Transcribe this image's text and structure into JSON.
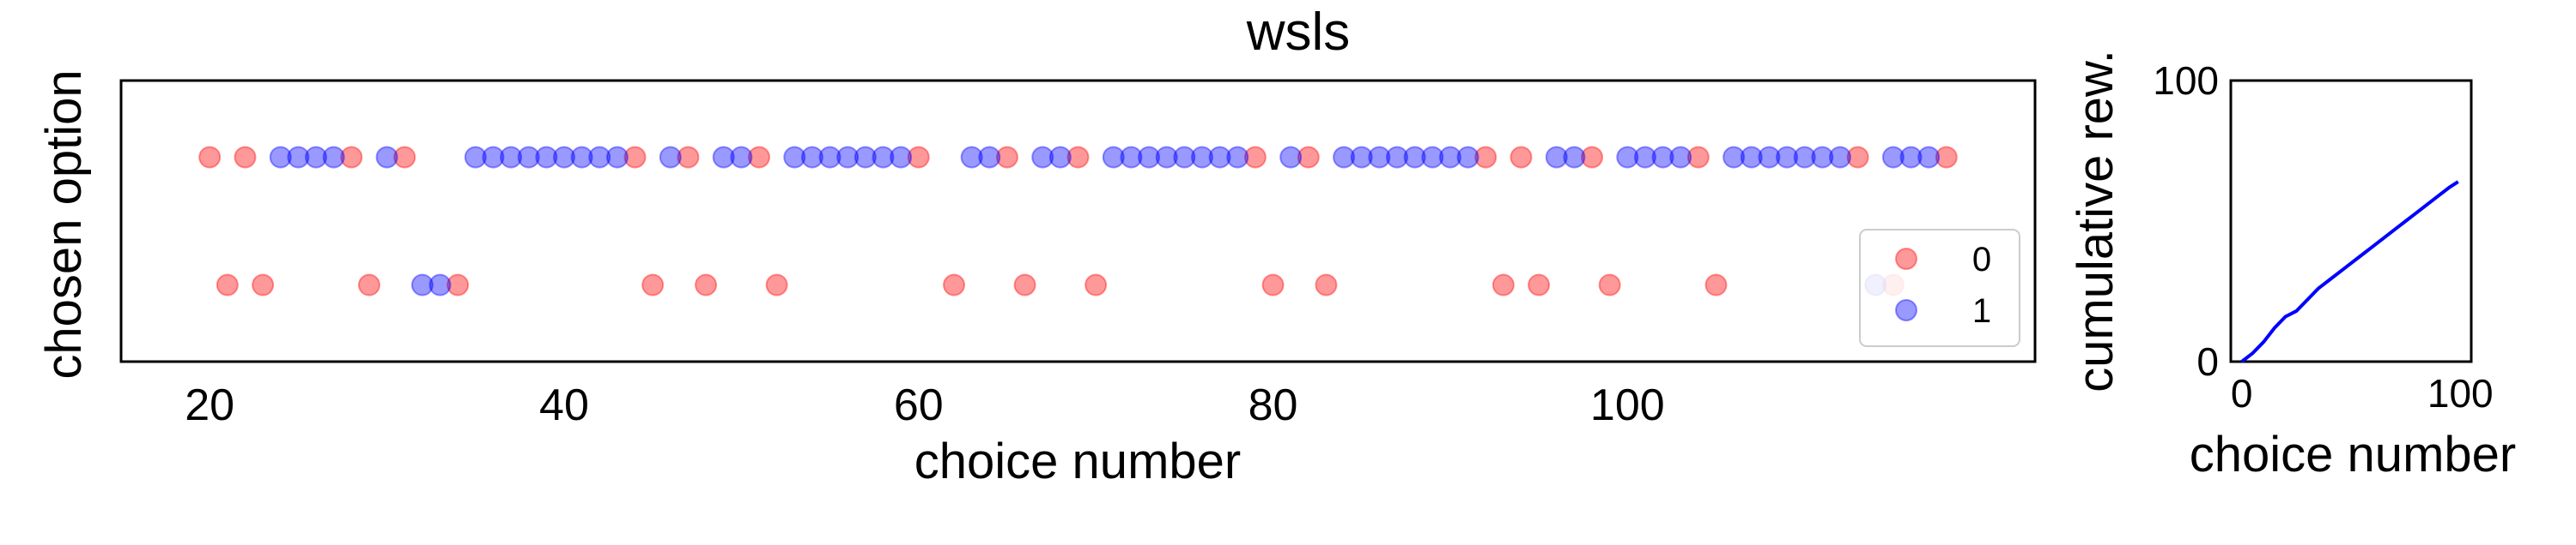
{
  "chart_data": [
    {
      "type": "scatter",
      "title": "wsls",
      "xlabel": "choice number",
      "ylabel": "chosen option",
      "xlim": [
        15,
        123
      ],
      "ylim": [
        -0.6,
        1.6
      ],
      "xticks": [
        20,
        40,
        60,
        80,
        100
      ],
      "yticks_visible": false,
      "legend": {
        "placement": "right",
        "entries": [
          "0",
          "1"
        ]
      },
      "colors": {
        "0": "#ff0000",
        "1": "#0000ff"
      },
      "marker_alpha": 0.4,
      "rewarded_y": 1,
      "unrewarded_y": 0,
      "series": [
        {
          "name": "0",
          "points": [
            [
              20,
              1
            ],
            [
              22,
              1
            ],
            [
              28,
              1
            ],
            [
              31,
              1
            ],
            [
              44,
              1
            ],
            [
              47,
              1
            ],
            [
              51,
              1
            ],
            [
              60,
              1
            ],
            [
              65,
              1
            ],
            [
              69,
              1
            ],
            [
              79,
              1
            ],
            [
              82,
              1
            ],
            [
              92,
              1
            ],
            [
              94,
              1
            ],
            [
              98,
              1
            ],
            [
              104,
              1
            ],
            [
              113,
              1
            ],
            [
              118,
              1
            ],
            [
              21,
              0
            ],
            [
              23,
              0
            ],
            [
              29,
              0
            ],
            [
              34,
              0
            ],
            [
              45,
              0
            ],
            [
              48,
              0
            ],
            [
              52,
              0
            ],
            [
              62,
              0
            ],
            [
              66,
              0
            ],
            [
              70,
              0
            ],
            [
              80,
              0
            ],
            [
              83,
              0
            ],
            [
              93,
              0
            ],
            [
              95,
              0
            ],
            [
              99,
              0
            ],
            [
              105,
              0
            ],
            [
              115,
              0
            ]
          ]
        },
        {
          "name": "1",
          "points": [
            [
              24,
              1
            ],
            [
              25,
              1
            ],
            [
              26,
              1
            ],
            [
              27,
              1
            ],
            [
              30,
              1
            ],
            [
              35,
              1
            ],
            [
              36,
              1
            ],
            [
              37,
              1
            ],
            [
              38,
              1
            ],
            [
              39,
              1
            ],
            [
              40,
              1
            ],
            [
              41,
              1
            ],
            [
              42,
              1
            ],
            [
              43,
              1
            ],
            [
              46,
              1
            ],
            [
              49,
              1
            ],
            [
              50,
              1
            ],
            [
              53,
              1
            ],
            [
              54,
              1
            ],
            [
              55,
              1
            ],
            [
              56,
              1
            ],
            [
              57,
              1
            ],
            [
              58,
              1
            ],
            [
              59,
              1
            ],
            [
              63,
              1
            ],
            [
              64,
              1
            ],
            [
              67,
              1
            ],
            [
              68,
              1
            ],
            [
              71,
              1
            ],
            [
              72,
              1
            ],
            [
              73,
              1
            ],
            [
              74,
              1
            ],
            [
              75,
              1
            ],
            [
              76,
              1
            ],
            [
              77,
              1
            ],
            [
              78,
              1
            ],
            [
              81,
              1
            ],
            [
              84,
              1
            ],
            [
              85,
              1
            ],
            [
              86,
              1
            ],
            [
              87,
              1
            ],
            [
              88,
              1
            ],
            [
              89,
              1
            ],
            [
              90,
              1
            ],
            [
              91,
              1
            ],
            [
              96,
              1
            ],
            [
              97,
              1
            ],
            [
              100,
              1
            ],
            [
              101,
              1
            ],
            [
              102,
              1
            ],
            [
              103,
              1
            ],
            [
              106,
              1
            ],
            [
              107,
              1
            ],
            [
              108,
              1
            ],
            [
              109,
              1
            ],
            [
              110,
              1
            ],
            [
              111,
              1
            ],
            [
              112,
              1
            ],
            [
              115,
              1
            ],
            [
              116,
              1
            ],
            [
              117,
              1
            ],
            [
              32,
              0
            ],
            [
              33,
              0
            ],
            [
              114,
              0
            ]
          ]
        }
      ]
    },
    {
      "type": "line",
      "title": "",
      "xlabel": "choice number",
      "ylabel": "cumulative rew.",
      "xlim": [
        -5,
        105
      ],
      "ylim": [
        0,
        100
      ],
      "xticks": [
        0,
        100
      ],
      "yticks": [
        0,
        100
      ],
      "series": [
        {
          "color": "#0000ff",
          "x": [
            0,
            5,
            10,
            15,
            20,
            25,
            30,
            35,
            40,
            45,
            50,
            55,
            60,
            65,
            70,
            75,
            80,
            85,
            90,
            95,
            99
          ],
          "y": [
            0,
            3,
            7,
            12,
            16,
            18,
            22,
            26,
            29,
            32,
            35,
            38,
            41,
            44,
            47,
            50,
            53,
            56,
            59,
            62,
            64
          ]
        }
      ]
    }
  ]
}
